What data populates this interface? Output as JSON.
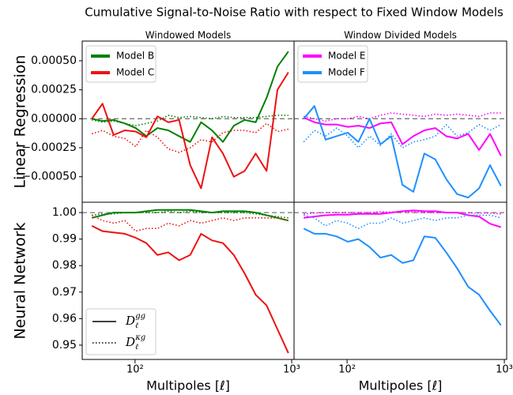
{
  "title": "Cumulative Signal-to-Noise Ratio with respect to Fixed Window Models",
  "chart_data": [
    {
      "type": "line",
      "title": "Windowed Models",
      "ylabel": "Linear Regression",
      "log_x": true,
      "legend": "upper left",
      "x": [
        53,
        62,
        73,
        86,
        101,
        118,
        139,
        163,
        191,
        225,
        264,
        310,
        364,
        427,
        501,
        589,
        691,
        811,
        952
      ],
      "xlim": [
        46,
        1035
      ],
      "ylim": [
        -0.00072,
        0.00067
      ],
      "yticks": [
        {
          "value": -0.0005,
          "label": "−0.00050"
        },
        {
          "value": -0.00025,
          "label": "−0.00025"
        },
        {
          "value": 0,
          "label": "0.00000"
        },
        {
          "value": 0.00025,
          "label": "0.00025"
        },
        {
          "value": 0.0005,
          "label": "0.00050"
        }
      ],
      "reference_line": 0,
      "series": [
        {
          "name": "Model B",
          "color": "#008000",
          "values": [
            0,
            -2e-05,
            -1e-05,
            -4e-05,
            -8e-05,
            -0.00015,
            -8e-05,
            -0.0001,
            -0.00015,
            -0.0002,
            -3e-05,
            -0.0001,
            -0.0002,
            -6e-05,
            -1e-05,
            -3e-05,
            0.00018,
            0.00045,
            0.00058
          ],
          "dotted_values": [
            -1e-05,
            -3e-05,
            -2e-05,
            -4e-05,
            -6e-05,
            -4e-05,
            -2e-05,
            3e-05,
            1e-05,
            2e-05,
            1e-05,
            0,
            2e-05,
            1e-05,
            1e-05,
            1e-05,
            2e-05,
            3e-05,
            3e-05
          ]
        },
        {
          "name": "Model C",
          "color": "#ee1111",
          "values": [
            0,
            0.00013,
            -0.00014,
            -0.0001,
            -0.00011,
            -0.00016,
            2e-05,
            -3e-05,
            -1e-05,
            -0.0004,
            -0.0006,
            -0.00016,
            -0.0003,
            -0.0005,
            -0.00045,
            -0.0003,
            -0.00045,
            0.00025,
            0.0004
          ],
          "dotted_values": [
            -0.00013,
            -0.0001,
            -0.00015,
            -0.00017,
            -0.00024,
            -0.0001,
            -0.00016,
            -0.00026,
            -0.00029,
            -0.00025,
            -0.00018,
            -0.0002,
            -0.00012,
            -0.0001,
            -0.0001,
            -0.00012,
            -4e-05,
            -0.00011,
            -9e-05
          ]
        }
      ]
    },
    {
      "type": "line",
      "title": "Window Divided Models",
      "log_x": true,
      "legend": "upper left",
      "x": [
        53,
        62,
        73,
        86,
        101,
        118,
        139,
        163,
        191,
        225,
        264,
        310,
        364,
        427,
        501,
        589,
        691,
        811,
        952
      ],
      "xlim": [
        46,
        1035
      ],
      "ylim": [
        -0.00072,
        0.00067
      ],
      "reference_line": 0,
      "series": [
        {
          "name": "Model E",
          "color": "#ff00ff",
          "values": [
            1e-05,
            -3e-05,
            -5e-05,
            -5e-05,
            -7e-05,
            -6e-05,
            -8e-05,
            -4e-05,
            -3e-05,
            -0.00022,
            -0.00015,
            -0.0001,
            -8e-05,
            -0.00015,
            -0.00017,
            -0.00013,
            -0.00027,
            -0.00013,
            -0.00032
          ],
          "dotted_values": [
            2e-05,
            0,
            -2e-05,
            0,
            0,
            2e-05,
            0,
            3e-05,
            5e-05,
            4e-05,
            3e-05,
            2e-05,
            4e-05,
            3e-05,
            4e-05,
            3e-05,
            2e-05,
            5e-05,
            5e-05
          ]
        },
        {
          "name": "Model F",
          "color": "#1e90ff",
          "values": [
            0,
            0.00011,
            -0.00018,
            -0.00015,
            -0.00012,
            -0.0002,
            0,
            -0.00022,
            -0.00015,
            -0.00057,
            -0.00063,
            -0.0003,
            -0.00035,
            -0.00052,
            -0.00065,
            -0.00068,
            -0.0006,
            -0.0004,
            -0.00058
          ],
          "dotted_values": [
            -0.0002,
            -0.0001,
            -0.00015,
            -8e-05,
            -0.00015,
            -0.00025,
            -0.00015,
            -0.00023,
            -0.00013,
            -0.00025,
            -0.0002,
            -0.00018,
            -0.00015,
            -5e-05,
            -0.00015,
            -0.00012,
            -5e-05,
            -0.0001,
            -5e-05
          ]
        }
      ]
    },
    {
      "type": "line",
      "ylabel": "Neural Network",
      "xlabel": "Multipoles [ℓ]",
      "log_x": true,
      "x": [
        53,
        62,
        73,
        86,
        101,
        118,
        139,
        163,
        191,
        225,
        264,
        310,
        364,
        427,
        501,
        589,
        691,
        811,
        952
      ],
      "xlim": [
        46,
        1035
      ],
      "xticks": [
        {
          "value": 100,
          "label": "10²"
        },
        {
          "value": 1000,
          "label": "10³"
        }
      ],
      "ylim": [
        0.9446,
        1.0039
      ],
      "yticks": [
        0.95,
        0.96,
        0.97,
        0.98,
        0.99,
        {
          "value": 1,
          "label": "1.00"
        }
      ],
      "reference_line": 1,
      "series": [
        {
          "color": "#008000",
          "values": [
            0.998,
            0.999,
            1.0,
            1.0,
            1.0,
            1.0005,
            1.001,
            1.001,
            1.001,
            1.001,
            1.0005,
            1.0,
            1.0005,
            1.0005,
            1.0005,
            1.0,
            0.999,
            0.998,
            0.997
          ],
          "dotted_values": [
            0.999,
            0.9995,
            0.9995,
            1.0,
            1.0,
            1.0,
            1.0,
            1.0005,
            1.0,
            1.0005,
            1.0,
            1.0,
            1.0,
            1.0,
            1.0,
            0.9995,
            0.999,
            0.9985,
            0.998
          ]
        },
        {
          "color": "#ee1111",
          "values": [
            0.995,
            0.993,
            0.9925,
            0.992,
            0.9905,
            0.9885,
            0.984,
            0.985,
            0.982,
            0.984,
            0.992,
            0.9895,
            0.9885,
            0.984,
            0.977,
            0.969,
            0.965,
            0.956,
            0.947
          ],
          "dotted_values": [
            0.999,
            0.997,
            0.996,
            0.997,
            0.993,
            0.994,
            0.994,
            0.996,
            0.995,
            0.997,
            0.996,
            0.997,
            0.998,
            0.997,
            0.998,
            0.998,
            0.998,
            0.998,
            0.997
          ]
        }
      ],
      "style_legend": [
        {
          "symbol": "D",
          "sub": "ℓ",
          "sup": "gg",
          "dash": "solid"
        },
        {
          "symbol": "D",
          "sub": "ℓ",
          "sup": "κg",
          "dash": "dotted"
        }
      ]
    },
    {
      "type": "line",
      "xlabel": "Multipoles [ℓ]",
      "log_x": true,
      "x": [
        53,
        62,
        73,
        86,
        101,
        118,
        139,
        163,
        191,
        225,
        264,
        310,
        364,
        427,
        501,
        589,
        691,
        811,
        952
      ],
      "xlim": [
        46,
        1035
      ],
      "xticks": [
        {
          "value": 100,
          "label": "10²"
        },
        {
          "value": 1000,
          "label": "10³"
        }
      ],
      "ylim": [
        0.9446,
        1.0039
      ],
      "reference_line": 1,
      "series": [
        {
          "color": "#ff00ff",
          "values": [
            0.998,
            0.9985,
            0.999,
            0.9992,
            0.9992,
            0.9995,
            0.9995,
            0.9995,
            1.0,
            1.0005,
            1.0008,
            1.0005,
            1.0005,
            1.0,
            1.0,
            0.999,
            0.9985,
            0.9958,
            0.9945
          ],
          "dotted_values": [
            0.9995,
            0.9998,
            1.0,
            1.0,
            1.0,
            1.0,
            1.0,
            1.0003,
            1.0002,
            1.0003,
            1.0002,
            1.0,
            1.0,
            1.0,
            1.0,
            0.9998,
            0.9998,
            0.9998,
            0.9995
          ]
        },
        {
          "color": "#1e90ff",
          "values": [
            0.994,
            0.992,
            0.992,
            0.991,
            0.989,
            0.99,
            0.987,
            0.983,
            0.984,
            0.981,
            0.982,
            0.991,
            0.9905,
            0.985,
            0.979,
            0.972,
            0.969,
            0.963,
            0.9575
          ],
          "dotted_values": [
            0.999,
            0.998,
            0.995,
            0.997,
            0.996,
            0.994,
            0.996,
            0.996,
            0.998,
            0.996,
            0.997,
            0.998,
            0.997,
            0.998,
            0.998,
            0.999,
            0.999,
            0.999,
            0.998
          ]
        }
      ]
    }
  ]
}
